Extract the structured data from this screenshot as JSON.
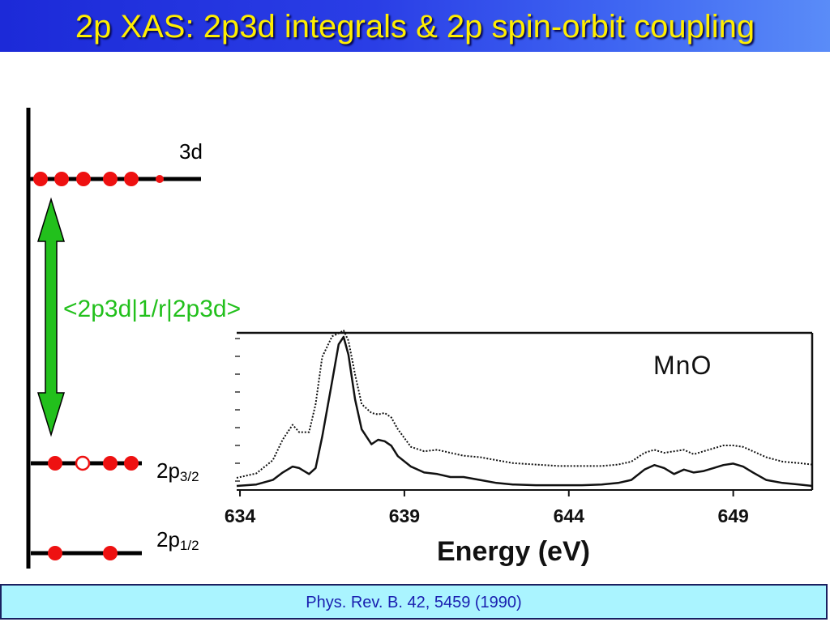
{
  "slide": {
    "title": "2p XAS: 2p3d integrals & 2p spin-orbit coupling",
    "reference": "Phys. Rev. B. 42, 5459 (1990)"
  },
  "diagram": {
    "levels": [
      {
        "name": "3d",
        "label": "3d",
        "filled": 5,
        "partial": 1
      },
      {
        "name": "2p3/2",
        "label_main": "2p",
        "label_sub": "3/2",
        "filled": 3,
        "holes": 1
      },
      {
        "name": "2p1/2",
        "label_main": "2p",
        "label_sub": "1/2",
        "filled": 2,
        "holes": 0
      }
    ],
    "integral_label": "<2p3d|1/r|2p3d>",
    "arrow_color": "#22c01c",
    "electron_color": "#ee1111"
  },
  "chart_data": {
    "type": "line",
    "title": "MnO",
    "xlabel": "Energy (eV)",
    "ylabel": "",
    "x_ticks": [
      634,
      639,
      644,
      649
    ],
    "xlim": [
      633.9,
      651.4
    ],
    "ylim": [
      0,
      1.0
    ],
    "grid": false,
    "series": [
      {
        "style": "solid",
        "x": [
          633.9,
          634.5,
          635.0,
          635.3,
          635.6,
          635.8,
          636.1,
          636.3,
          636.5,
          636.8,
          637.0,
          637.15,
          637.3,
          637.5,
          637.7,
          638.0,
          638.2,
          638.4,
          638.6,
          638.8,
          639.2,
          639.6,
          640.0,
          640.4,
          640.8,
          641.3,
          641.8,
          642.3,
          643.0,
          643.7,
          644.4,
          645.0,
          645.5,
          645.9,
          646.3,
          646.6,
          646.9,
          647.2,
          647.5,
          647.8,
          648.1,
          648.4,
          648.7,
          649.0,
          649.3,
          649.6,
          650.0,
          650.5,
          651.0,
          651.4
        ],
        "y": [
          0.0,
          0.01,
          0.04,
          0.09,
          0.13,
          0.12,
          0.08,
          0.12,
          0.33,
          0.7,
          0.95,
          1.0,
          0.88,
          0.58,
          0.38,
          0.28,
          0.31,
          0.3,
          0.27,
          0.2,
          0.13,
          0.09,
          0.08,
          0.06,
          0.06,
          0.04,
          0.02,
          0.01,
          0.005,
          0.005,
          0.005,
          0.01,
          0.02,
          0.04,
          0.11,
          0.14,
          0.12,
          0.08,
          0.11,
          0.09,
          0.1,
          0.12,
          0.14,
          0.15,
          0.13,
          0.09,
          0.04,
          0.02,
          0.01,
          0.0
        ]
      },
      {
        "style": "dotted",
        "x": [
          633.9,
          634.5,
          635.0,
          635.3,
          635.6,
          635.8,
          636.1,
          636.3,
          636.5,
          636.8,
          637.0,
          637.15,
          637.3,
          637.5,
          637.7,
          638.0,
          638.2,
          638.4,
          638.6,
          638.8,
          639.2,
          639.6,
          640.0,
          640.4,
          640.8,
          641.3,
          641.8,
          642.3,
          643.0,
          643.7,
          644.4,
          645.0,
          645.5,
          645.9,
          646.3,
          646.6,
          646.9,
          647.2,
          647.5,
          647.8,
          648.1,
          648.4,
          648.7,
          649.0,
          649.3,
          649.6,
          650.0,
          650.5,
          651.0,
          651.4
        ],
        "y": [
          0.0,
          0.03,
          0.12,
          0.26,
          0.36,
          0.31,
          0.31,
          0.5,
          0.82,
          0.96,
          0.98,
          1.0,
          0.93,
          0.7,
          0.5,
          0.44,
          0.43,
          0.44,
          0.41,
          0.33,
          0.21,
          0.18,
          0.19,
          0.17,
          0.15,
          0.14,
          0.12,
          0.1,
          0.09,
          0.08,
          0.08,
          0.08,
          0.09,
          0.11,
          0.17,
          0.19,
          0.17,
          0.18,
          0.19,
          0.16,
          0.18,
          0.2,
          0.22,
          0.22,
          0.21,
          0.18,
          0.14,
          0.11,
          0.1,
          0.09
        ]
      }
    ]
  }
}
